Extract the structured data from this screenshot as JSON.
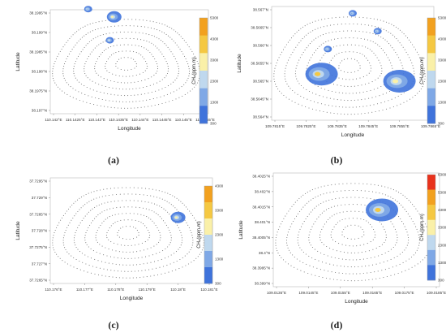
{
  "chart_data": [
    {
      "type": "heatmap",
      "panel_label": "(a)",
      "xlabel": "Longitude",
      "ylabel": "Latitude",
      "x_ticks": [
        "110.142°E",
        "110.1425°E",
        "110.143°E",
        "110.1435°E",
        "110.144°E",
        "110.1445°E",
        "110.145°E",
        "110.1455°E"
      ],
      "y_ticks": [
        "38.1995°N",
        "38.199°N",
        "38.1985°N",
        "38.198°N",
        "38.1975°N",
        "38.197°N"
      ],
      "colorbar": {
        "label": "CH₄(ppm.m)",
        "ticks": [
          "5300",
          "4300",
          "3300",
          "2300",
          "1300",
          "300"
        ],
        "colors": [
          "#f2a11f",
          "#f5c842",
          "#faf0a8",
          "#bfd8ee",
          "#7fa8e6",
          "#3f73db"
        ]
      },
      "plumes": [
        {
          "center": [
            110.1428,
            38.1996
          ],
          "size": "small",
          "peak": 1300
        },
        {
          "center": [
            110.1434,
            38.1994
          ],
          "size": "medium",
          "peak": 3300
        },
        {
          "center": [
            110.1433,
            38.1988
          ],
          "size": "small",
          "peak": 2300
        }
      ]
    },
    {
      "type": "heatmap",
      "panel_label": "(b)",
      "xlabel": "Longitude",
      "ylabel": "Latitude",
      "x_ticks": [
        "109.7815°E",
        "109.7825°E",
        "109.7835°E",
        "109.7845°E",
        "109.7855°E",
        "109.7865°E"
      ],
      "y_ticks": [
        "38.567°N",
        "38.5665°N",
        "38.566°N",
        "38.5655°N",
        "38.565°N",
        "38.5645°N",
        "38.564°N"
      ],
      "colorbar": {
        "label": "CH₄(ppm.m)",
        "ticks": [
          "5300",
          "4300",
          "3300",
          "2300",
          "1300",
          "300"
        ],
        "colors": [
          "#f2a11f",
          "#f5c842",
          "#faf0a8",
          "#bfd8ee",
          "#7fa8e6",
          "#3f73db"
        ]
      },
      "plumes": [
        {
          "center": [
            109.784,
            38.5669
          ],
          "size": "small",
          "peak": 1300
        },
        {
          "center": [
            109.7848,
            38.5664
          ],
          "size": "small",
          "peak": 1300
        },
        {
          "center": [
            109.7832,
            38.5659
          ],
          "size": "small",
          "peak": 1300
        },
        {
          "center": [
            109.783,
            38.5652
          ],
          "size": "large",
          "peak": 4300
        },
        {
          "center": [
            109.7855,
            38.565
          ],
          "size": "large",
          "peak": 3300
        }
      ]
    },
    {
      "type": "heatmap",
      "panel_label": "(c)",
      "xlabel": "Longitude",
      "ylabel": "Latitude",
      "x_ticks": [
        "110.176°E",
        "110.177°E",
        "110.178°E",
        "110.179°E",
        "110.18°E",
        "110.181°E"
      ],
      "y_ticks": [
        "37.7295°N",
        "37.729°N",
        "37.7285°N",
        "37.728°N",
        "37.7275°N",
        "37.727°N",
        "37.7265°N"
      ],
      "colorbar": {
        "label": "CH₄(ppm.m)",
        "ticks": [
          "4300",
          "3300",
          "2300",
          "1300",
          "300"
        ],
        "colors": [
          "#f2a11f",
          "#f5c842",
          "#faf0a8",
          "#bfd8ee",
          "#7fa8e6",
          "#3f73db"
        ]
      },
      "plumes": [
        {
          "center": [
            110.18,
            37.7284
          ],
          "size": "medium",
          "peak": 3300
        }
      ]
    },
    {
      "type": "heatmap",
      "panel_label": "(d)",
      "xlabel": "Longitude",
      "ylabel": "Latitude",
      "x_ticks": [
        "109.0135°E",
        "109.0145°E",
        "109.0155°E",
        "109.0165°E",
        "109.0175°E",
        "109.0185°E"
      ],
      "y_ticks": [
        "38.4025°N",
        "38.402°N",
        "38.4015°N",
        "38.401°N",
        "38.4005°N",
        "38.4°N",
        "38.3995°N",
        "38.399°N"
      ],
      "colorbar": {
        "label": "CH₄(ppm.m)",
        "ticks": [
          "6300",
          "5300",
          "4300",
          "3300",
          "2300",
          "1300",
          "300"
        ],
        "colors": [
          "#e8321c",
          "#f2a11f",
          "#f5c842",
          "#faf0a8",
          "#bfd8ee",
          "#7fa8e6",
          "#3f73db"
        ]
      },
      "plumes": [
        {
          "center": [
            109.0168,
            38.4014
          ],
          "size": "large",
          "peak": 4300
        }
      ]
    }
  ]
}
